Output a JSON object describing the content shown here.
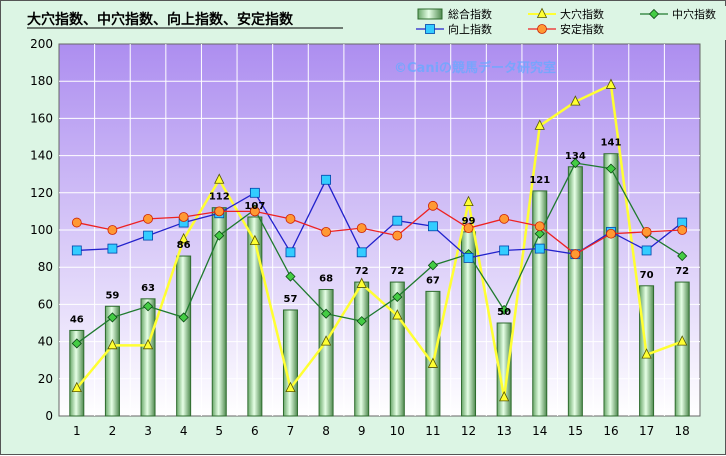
{
  "chart_data": {
    "type": "bar",
    "title": "大穴指数、中穴指数、向上指数、安定指数",
    "watermark": "©Caniの競馬データ研究室",
    "categories": [
      "1",
      "2",
      "3",
      "4",
      "5",
      "6",
      "7",
      "8",
      "9",
      "10",
      "11",
      "12",
      "13",
      "14",
      "15",
      "16",
      "17",
      "18"
    ],
    "ylim": [
      0,
      200
    ],
    "yticks": [
      "0",
      "20",
      "40",
      "60",
      "80",
      "100",
      "120",
      "140",
      "160",
      "180",
      "200"
    ],
    "grid": "on",
    "legend_position": "top-right",
    "series": [
      {
        "name": "総合指数",
        "kind": "bar",
        "color": "#2e6b2e",
        "fill": "#bfe8bf",
        "values": [
          46,
          59,
          63,
          86,
          112,
          107,
          57,
          68,
          72,
          72,
          67,
          99,
          50,
          121,
          134,
          141,
          70,
          72
        ]
      },
      {
        "name": "大穴指数",
        "kind": "line",
        "marker": "triangle",
        "color": "#ffff33",
        "values": [
          15,
          38,
          38,
          95,
          127,
          94,
          15,
          40,
          71,
          54,
          28,
          115,
          10,
          156,
          169,
          178,
          33,
          40
        ]
      },
      {
        "name": "中穴指数",
        "kind": "line",
        "marker": "diamond",
        "color": "#1f7a2e",
        "values": [
          39,
          53,
          59,
          53,
          97,
          111,
          75,
          55,
          51,
          64,
          81,
          87,
          57,
          98,
          136,
          133,
          98,
          86
        ]
      },
      {
        "name": "向上指数",
        "kind": "line",
        "marker": "square",
        "color": "#2222cc",
        "values": [
          89,
          90,
          97,
          104,
          109,
          120,
          88,
          127,
          88,
          105,
          102,
          85,
          89,
          90,
          87,
          99,
          89,
          104
        ]
      },
      {
        "name": "安定指数",
        "kind": "line",
        "marker": "circle",
        "color": "#ee2222",
        "values": [
          104,
          100,
          106,
          107,
          110,
          110,
          106,
          99,
          101,
          97,
          113,
          101,
          106,
          102,
          87,
          98,
          99,
          100
        ]
      }
    ],
    "data_labels": [
      "46",
      "59",
      "63",
      "86",
      "112",
      "107",
      "57",
      "68",
      "72",
      "72",
      "67",
      "99",
      "50",
      "121",
      "134",
      "141",
      "70",
      "72"
    ]
  }
}
